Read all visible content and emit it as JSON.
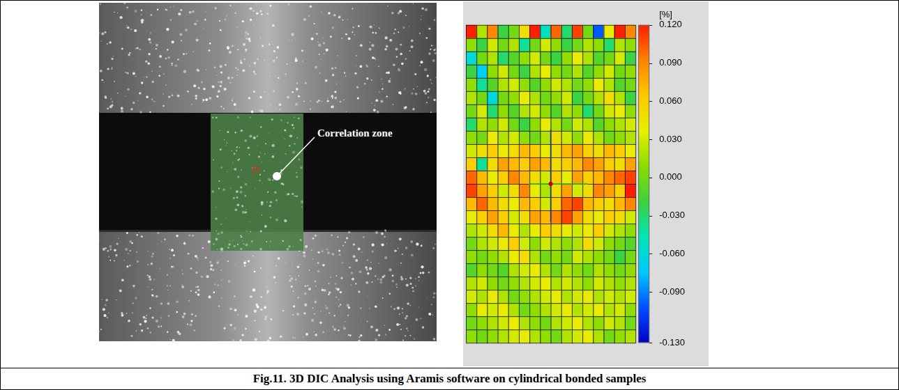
{
  "figure": {
    "caption": "Fig.11. 3D DIC Analysis using Aramis software on cylindrical bonded samples",
    "photo": {
      "annotation": "Correlation zone"
    }
  },
  "chart_data": {
    "type": "heatmap",
    "grid": true,
    "tick_labels": false,
    "cells": [
      [
        0.12,
        0.02,
        0.09,
        -0.02,
        0.0,
        0.05,
        0.12,
        -0.05,
        0.1,
        -0.03,
        0.11,
        0.0,
        -0.1,
        0.04,
        0.12,
        0.09
      ],
      [
        0.01,
        -0.02,
        0.03,
        0.0,
        0.02,
        -0.04,
        0.0,
        0.03,
        0.01,
        -0.02,
        0.0,
        0.02,
        0.01,
        -0.03,
        0.02,
        0.01
      ],
      [
        -0.06,
        0.0,
        0.02,
        -0.03,
        -0.01,
        0.01,
        0.03,
        0.0,
        -0.02,
        0.01,
        0.04,
        0.02,
        -0.01,
        0.0,
        0.03,
        -0.02
      ],
      [
        -0.02,
        -0.07,
        0.01,
        0.03,
        0.0,
        -0.02,
        0.02,
        0.04,
        0.01,
        0.0,
        0.02,
        -0.01,
        0.01,
        0.03,
        0.0,
        0.01
      ],
      [
        0.01,
        -0.04,
        -0.01,
        0.02,
        0.03,
        0.01,
        -0.01,
        0.01,
        0.03,
        0.02,
        0.0,
        0.01,
        0.04,
        0.02,
        -0.01,
        0.0
      ],
      [
        0.02,
        0.0,
        -0.06,
        0.0,
        0.01,
        0.04,
        0.02,
        0.0,
        0.01,
        0.03,
        -0.02,
        0.0,
        0.02,
        0.05,
        0.02,
        -0.02
      ],
      [
        0.0,
        0.03,
        -0.03,
        0.01,
        -0.01,
        0.02,
        0.03,
        0.01,
        -0.01,
        0.02,
        0.01,
        -0.03,
        0.0,
        0.03,
        0.04,
        0.01
      ],
      [
        -0.03,
        0.02,
        0.01,
        0.03,
        0.0,
        -0.02,
        0.01,
        0.04,
        0.02,
        0.0,
        0.03,
        0.02,
        -0.01,
        0.01,
        0.02,
        0.03
      ],
      [
        0.01,
        0.0,
        0.04,
        0.02,
        0.03,
        0.01,
        0.0,
        0.02,
        0.05,
        0.03,
        0.01,
        0.04,
        0.02,
        0.0,
        0.01,
        0.02
      ],
      [
        0.03,
        0.05,
        0.06,
        0.04,
        0.05,
        0.07,
        0.06,
        0.04,
        0.05,
        0.07,
        0.08,
        0.06,
        0.05,
        0.07,
        0.06,
        0.04
      ],
      [
        0.06,
        -0.04,
        0.05,
        0.08,
        0.07,
        0.06,
        0.08,
        0.07,
        0.05,
        0.06,
        0.07,
        0.09,
        0.08,
        0.06,
        0.05,
        0.08
      ],
      [
        0.1,
        0.07,
        0.04,
        0.06,
        0.09,
        0.07,
        0.05,
        0.03,
        0.06,
        0.04,
        0.08,
        0.06,
        0.07,
        0.09,
        0.1,
        0.11
      ],
      [
        0.11,
        0.08,
        0.06,
        0.03,
        0.05,
        0.09,
        0.04,
        0.02,
        0.05,
        0.08,
        0.03,
        0.05,
        0.09,
        0.08,
        0.06,
        0.12
      ],
      [
        0.07,
        0.1,
        0.07,
        0.05,
        0.04,
        0.07,
        0.06,
        0.03,
        0.06,
        0.1,
        0.11,
        0.07,
        0.06,
        0.05,
        0.07,
        0.09
      ],
      [
        0.04,
        0.06,
        0.08,
        0.06,
        0.03,
        0.05,
        0.08,
        0.07,
        0.09,
        0.11,
        0.08,
        0.05,
        0.04,
        0.06,
        0.05,
        0.03
      ],
      [
        0.02,
        0.03,
        0.05,
        0.07,
        0.04,
        0.02,
        0.04,
        0.06,
        0.05,
        0.04,
        0.03,
        0.04,
        0.06,
        0.03,
        0.02,
        0.01
      ],
      [
        0.0,
        0.02,
        0.03,
        0.04,
        0.06,
        0.03,
        0.01,
        0.03,
        0.02,
        0.01,
        0.02,
        0.05,
        0.03,
        0.01,
        0.0,
        -0.01
      ],
      [
        0.01,
        0.0,
        0.01,
        0.02,
        0.04,
        0.05,
        0.02,
        0.0,
        0.01,
        0.0,
        0.03,
        0.02,
        0.01,
        0.0,
        -0.02,
        0.0
      ],
      [
        -0.01,
        0.01,
        0.0,
        -0.01,
        0.02,
        0.03,
        0.04,
        0.02,
        0.0,
        0.02,
        0.01,
        0.0,
        0.02,
        0.01,
        0.0,
        0.01
      ],
      [
        0.02,
        0.03,
        0.01,
        0.0,
        0.01,
        0.02,
        0.03,
        0.04,
        0.02,
        0.03,
        0.02,
        0.01,
        0.03,
        0.02,
        0.01,
        0.02
      ],
      [
        0.03,
        0.02,
        0.04,
        0.02,
        0.0,
        0.01,
        0.02,
        0.03,
        0.04,
        0.02,
        0.03,
        0.04,
        0.02,
        0.03,
        0.02,
        0.03
      ],
      [
        0.01,
        0.04,
        0.03,
        0.04,
        0.02,
        0.0,
        0.01,
        0.02,
        0.03,
        0.04,
        0.02,
        0.03,
        0.04,
        0.02,
        0.03,
        0.01
      ],
      [
        0.0,
        0.01,
        0.02,
        0.03,
        0.04,
        0.02,
        0.01,
        0.0,
        0.02,
        0.03,
        0.04,
        0.02,
        0.01,
        0.03,
        0.02,
        0.0
      ],
      [
        0.01,
        0.0,
        0.01,
        0.02,
        0.03,
        0.04,
        0.02,
        0.01,
        0.0,
        0.02,
        0.03,
        0.04,
        0.02,
        0.0,
        0.01,
        0.02
      ]
    ],
    "colorbar": {
      "title": "[%]",
      "range": [
        -0.13,
        0.12
      ],
      "ticks": [
        {
          "value": 0.12,
          "label": "0.120"
        },
        {
          "value": 0.09,
          "label": "0.090"
        },
        {
          "value": 0.06,
          "label": "0.060"
        },
        {
          "value": 0.03,
          "label": "0.030"
        },
        {
          "value": 0,
          "label": "0.000"
        },
        {
          "value": -0.03,
          "label": "-0.030"
        },
        {
          "value": -0.06,
          "label": "-0.060"
        },
        {
          "value": -0.09,
          "label": "-0.090"
        },
        {
          "value": -0.13,
          "label": "-0.130"
        }
      ],
      "colors": [
        "#0000c8",
        "#0050ff",
        "#00c8ff",
        "#00e6b4",
        "#3cd23c",
        "#8cdc00",
        "#e6f000",
        "#ffc800",
        "#ff8200",
        "#ff1e00"
      ]
    }
  }
}
